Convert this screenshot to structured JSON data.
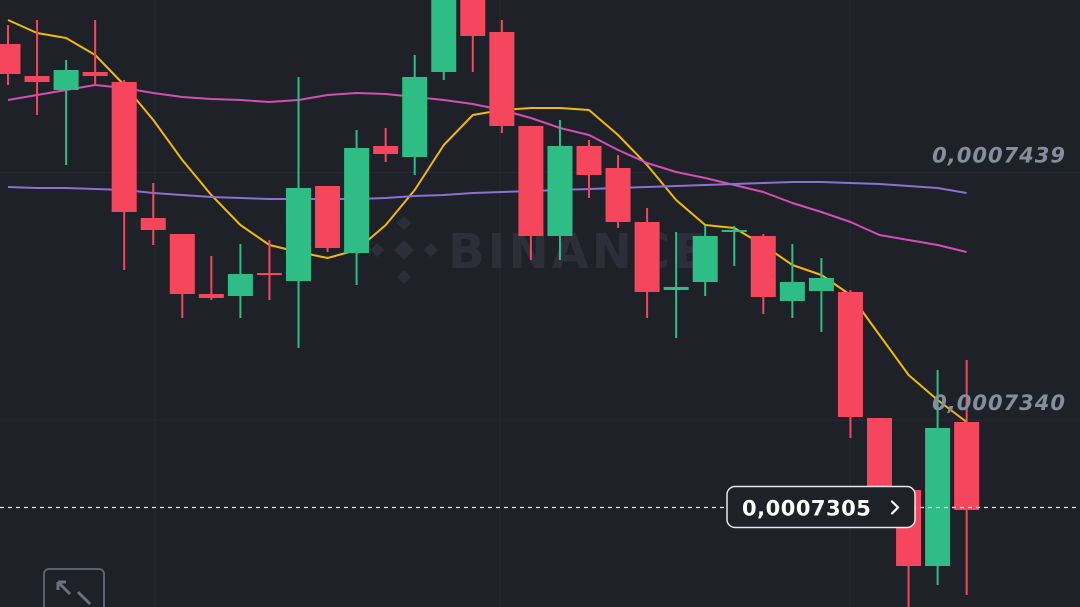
{
  "chart_data": {
    "type": "candlestick",
    "watermark": "BINANCE",
    "up_color": "#2ebd85",
    "down_color": "#f6465d",
    "ylim": [
      0.00072652,
      0.0007508
    ],
    "yticks": [
      {
        "value": 0.0007439,
        "label": "0,0007439"
      },
      {
        "value": 0.000734,
        "label": "0,0007340"
      }
    ],
    "grid": true,
    "last_price": {
      "value": 0.0007305,
      "label": "0,0007305"
    },
    "open": [
      0.00074904,
      0.00074776,
      0.0007472,
      0.00074792,
      0.00074752,
      0.00074208,
      0.00074144,
      0.00073904,
      0.00073896,
      0.00073988,
      0.00073956,
      0.00074336,
      0.00074068,
      0.00074496,
      0.00074452,
      0.00074792,
      0.000751,
      0.00074952,
      0.00074576,
      0.00074136,
      0.00074496,
      0.00074408,
      0.00074192,
      0.0007392,
      0.00073952,
      0.00074152,
      0.00074136,
      0.00073876,
      0.00073916,
      0.00073912,
      0.00073408,
      0.0007312,
      0.00072816,
      0.00073392
    ],
    "high": [
      0.0007498,
      0.00075,
      0.0007484,
      0.00075,
      0.0007476,
      0.00074348,
      0.00074144,
      0.00074056,
      0.00074104,
      0.0007412,
      0.00074772,
      0.00074336,
      0.0007456,
      0.00074568,
      0.0007486,
      0.0007514,
      0.0007514,
      0.00075,
      0.00074576,
      0.000746,
      0.0007452,
      0.0007446,
      0.00074248,
      0.00074152,
      0.00074176,
      0.00074176,
      0.00074144,
      0.00074104,
      0.00074048,
      0.0007392,
      0.00073408,
      0.0007312,
      0.000736,
      0.0007364
    ],
    "low": [
      0.0007474,
      0.0007462,
      0.0007442,
      0.0007474,
      0.00074,
      0.000741,
      0.00073808,
      0.0007388,
      0.00073808,
      0.0007388,
      0.00073688,
      0.00074072,
      0.0007394,
      0.00074432,
      0.0007438,
      0.0007476,
      0.00074792,
      0.00074548,
      0.0007404,
      0.0007404,
      0.00074288,
      0.00074168,
      0.00073808,
      0.00073728,
      0.00073896,
      0.00074016,
      0.00073824,
      0.00073808,
      0.00073752,
      0.00073328,
      0.00073088,
      0.0007258,
      0.0007274,
      0.000727
    ],
    "close": [
      0.00074784,
      0.00074752,
      0.000748,
      0.00074776,
      0.00074232,
      0.0007416,
      0.00073904,
      0.00073888,
      0.00073984,
      0.0007398,
      0.00074328,
      0.00074088,
      0.00074488,
      0.00074464,
      0.00074772,
      0.000751,
      0.00074936,
      0.00074576,
      0.00074136,
      0.00074496,
      0.0007438,
      0.00074192,
      0.00073912,
      0.00073932,
      0.00074136,
      0.0007416,
      0.00073892,
      0.00073952,
      0.00073968,
      0.00073412,
      0.0007312,
      0.00072816,
      0.00073368,
      0.0007304
    ],
    "lines": [
      {
        "color": "#f0b90b",
        "values": [
          0.00075,
          0.00074948,
          0.00074928,
          0.0007486,
          0.0007474,
          0.000746,
          0.0007444,
          0.000743,
          0.0007418,
          0.000741,
          0.00074072,
          0.00074048,
          0.0007408,
          0.0007418,
          0.0007432,
          0.000745,
          0.0007462,
          0.0007464,
          0.00074648,
          0.00074648,
          0.0007464,
          0.0007454,
          0.0007442,
          0.0007428,
          0.0007418,
          0.00074168,
          0.000741,
          0.0007402,
          0.0007398,
          0.000739,
          0.0007374,
          0.0007358,
          0.0007348,
          0.00073392
        ]
      },
      {
        "color": "#d24fb4",
        "values": [
          0.0007468,
          0.000747,
          0.0007472,
          0.0007474,
          0.00074728,
          0.00074708,
          0.00074692,
          0.00074684,
          0.0007468,
          0.00074672,
          0.0007468,
          0.000747,
          0.00074708,
          0.00074704,
          0.00074692,
          0.0007468,
          0.00074664,
          0.0007464,
          0.00074608,
          0.00074568,
          0.0007454,
          0.0007448,
          0.00074428,
          0.00074392,
          0.00074368,
          0.0007434,
          0.00074312,
          0.00074268,
          0.00074232,
          0.00074192,
          0.0007414,
          0.0007412,
          0.000741,
          0.00074072
        ]
      },
      {
        "color": "#8e6fd3",
        "values": [
          0.00074332,
          0.00074328,
          0.00074328,
          0.00074324,
          0.0007432,
          0.00074308,
          0.000743,
          0.00074292,
          0.00074288,
          0.00074284,
          0.00074284,
          0.00074284,
          0.00074284,
          0.00074288,
          0.00074296,
          0.000743,
          0.00074308,
          0.00074312,
          0.00074316,
          0.0007432,
          0.00074324,
          0.00074328,
          0.00074332,
          0.00074336,
          0.0007434,
          0.00074344,
          0.00074348,
          0.00074352,
          0.00074352,
          0.00074348,
          0.00074344,
          0.00074336,
          0.00074328,
          0.00074308
        ]
      }
    ]
  }
}
